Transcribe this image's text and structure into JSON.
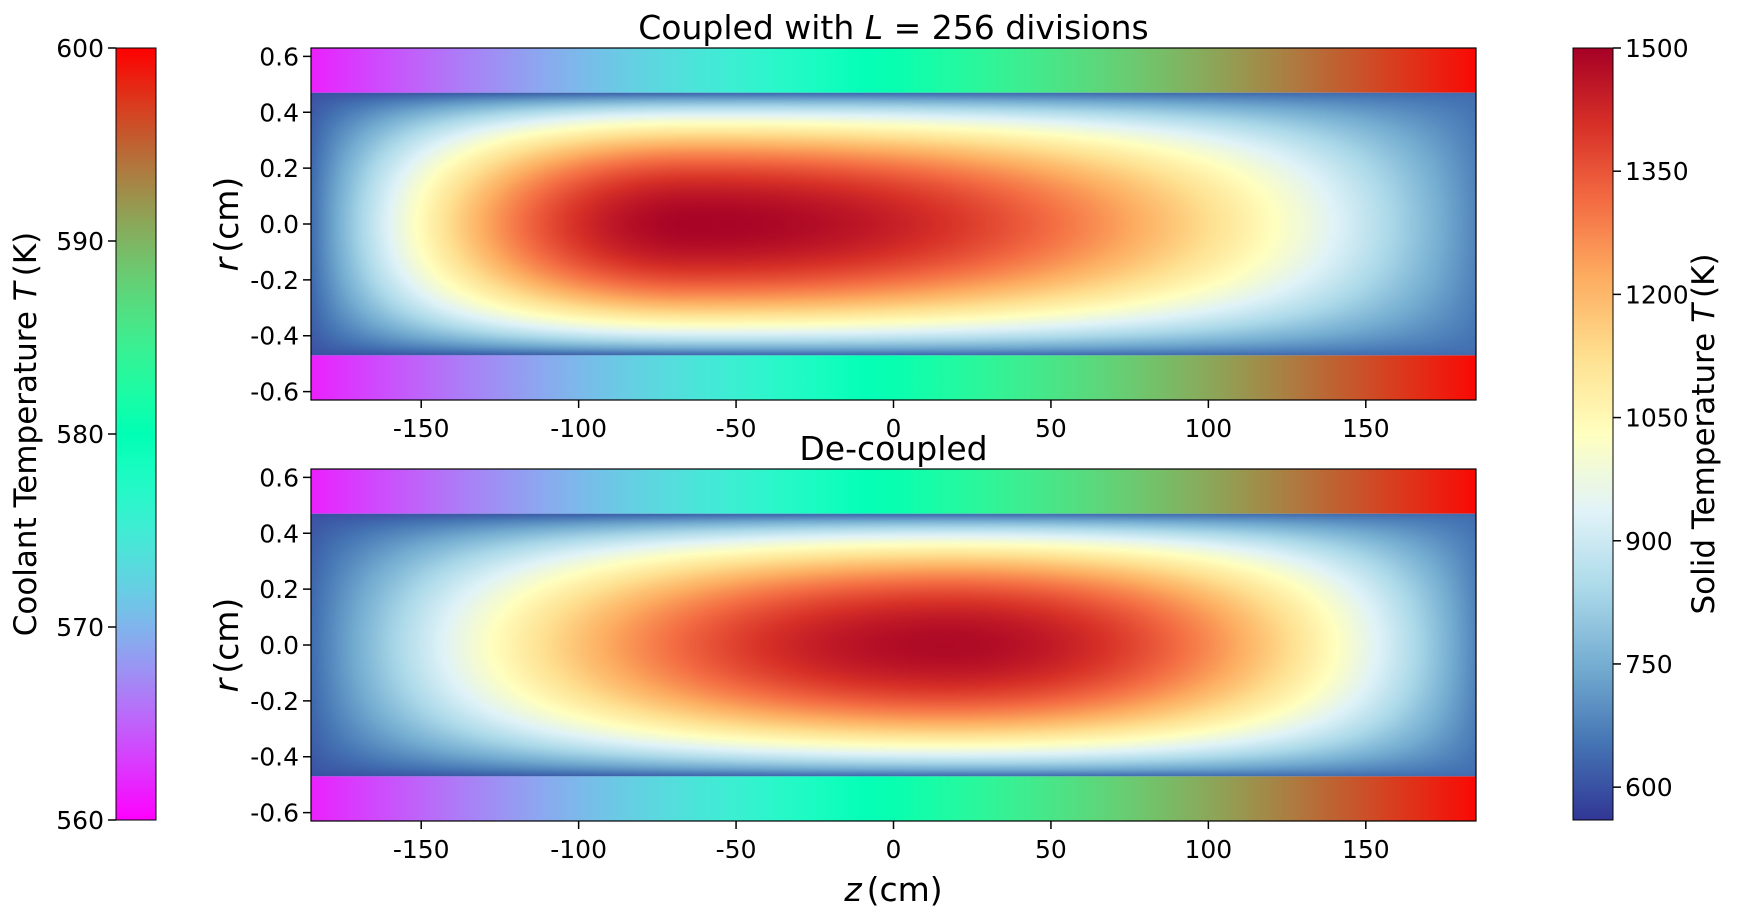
{
  "chart_data": {
    "type": "heatmap",
    "panels": [
      {
        "title_prefix": "Coupled with ",
        "title_var": "L",
        "title_suffix": " = 256 divisions",
        "xlabel_var": "",
        "xlabel_unit": "",
        "ylabel_var": "r",
        "ylabel_unit": "(cm)",
        "solid_peak_z": -65,
        "solid_peak_T": 1480
      },
      {
        "title_prefix": "De-coupled",
        "title_var": "",
        "title_suffix": "",
        "xlabel_var": "z",
        "xlabel_unit": "(cm)",
        "ylabel_var": "r",
        "ylabel_unit": "(cm)",
        "solid_peak_z": 15,
        "solid_peak_T": 1460
      }
    ],
    "xlim": [
      -185,
      185
    ],
    "ylim": [
      -0.63,
      0.63
    ],
    "xticks": [
      -150,
      -100,
      -50,
      0,
      50,
      100,
      150
    ],
    "xtick_labels": [
      "-150",
      "-100",
      "-50",
      "0",
      "50",
      "100",
      "150"
    ],
    "yticks": [
      0.6,
      0.4,
      0.2,
      0.0,
      -0.2,
      -0.4,
      -0.6
    ],
    "ytick_labels": [
      "0.6",
      "0.4",
      "0.2",
      "0.0",
      "-0.2",
      "-0.4",
      "-0.6"
    ],
    "solid_region_r": [
      -0.47,
      0.47
    ],
    "solid_edge_T": 600,
    "coolant_T_inlet": 560,
    "coolant_T_outlet": 600,
    "coolant_colorbar": {
      "label_prefix": "Coolant Temperature ",
      "label_var": "T",
      "label_unit": "(K)",
      "range": [
        560,
        600
      ],
      "colormap": "rainbow",
      "ticks": [
        600,
        590,
        580,
        570,
        560
      ],
      "tick_labels": [
        "600",
        "590",
        "580",
        "570",
        "560"
      ]
    },
    "solid_colorbar": {
      "label_prefix": "Solid Temperature ",
      "label_var": "T",
      "label_unit": "(K)",
      "range": [
        560,
        1500
      ],
      "colormap": "RdYlBu_r",
      "ticks": [
        1500,
        1350,
        1200,
        1050,
        900,
        750,
        600
      ],
      "tick_labels": [
        "1500",
        "1350",
        "1200",
        "1050",
        "900",
        "750",
        "600"
      ]
    }
  }
}
